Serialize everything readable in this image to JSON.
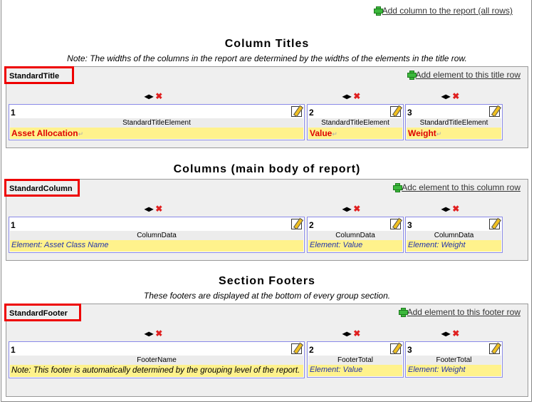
{
  "top_link": "Add column to the report (all rows)",
  "sections": [
    {
      "heading": "Column Titles",
      "note": "Note: The widths of the columns in the report are determined by the widths of the elements in the title row.",
      "row_name": "StandardTitle",
      "add_label": "Add element to this title row",
      "cells": [
        {
          "num": "1",
          "type": "StandardTitleElement",
          "value": "Asset Allocation"
        },
        {
          "num": "2",
          "type": "StandardTitleElement",
          "value": "Value"
        },
        {
          "num": "3",
          "type": "StandardTitleElement",
          "value": "Weight"
        }
      ]
    },
    {
      "heading": "Columns (main body of report)",
      "row_name": "StandardColumn",
      "add_label": "Adc element to this column row",
      "cells": [
        {
          "num": "1",
          "type": "ColumnData",
          "value": "Element: Asset Class Name"
        },
        {
          "num": "2",
          "type": "ColumnData",
          "value": "Element: Value"
        },
        {
          "num": "3",
          "type": "ColumnData",
          "value": "Element: Weight"
        }
      ]
    },
    {
      "heading": "Section Footers",
      "note": "These footers are displayed at the bottom of every group section.",
      "row_name": "StandardFooter",
      "add_label": "Add element to this footer row",
      "cells": [
        {
          "num": "1",
          "type": "FooterName",
          "value": "Note: This footer is automatically determined by the grouping level of the report."
        },
        {
          "num": "2",
          "type": "FooterTotal",
          "value": "Element: Value"
        },
        {
          "num": "3",
          "type": "FooterTotal",
          "value": "Element: Weight"
        }
      ]
    }
  ],
  "icons": {
    "move": "move-arrows-icon",
    "delete": "delete-x-icon",
    "edit": "edit-pencil-icon",
    "add": "green-plus-icon"
  },
  "colors": {
    "highlight_border": "#ee0000",
    "cell_border": "#8a8ae8",
    "value_bg": "#fff28c",
    "title_text": "#dd0000",
    "element_text": "#2233aa"
  }
}
